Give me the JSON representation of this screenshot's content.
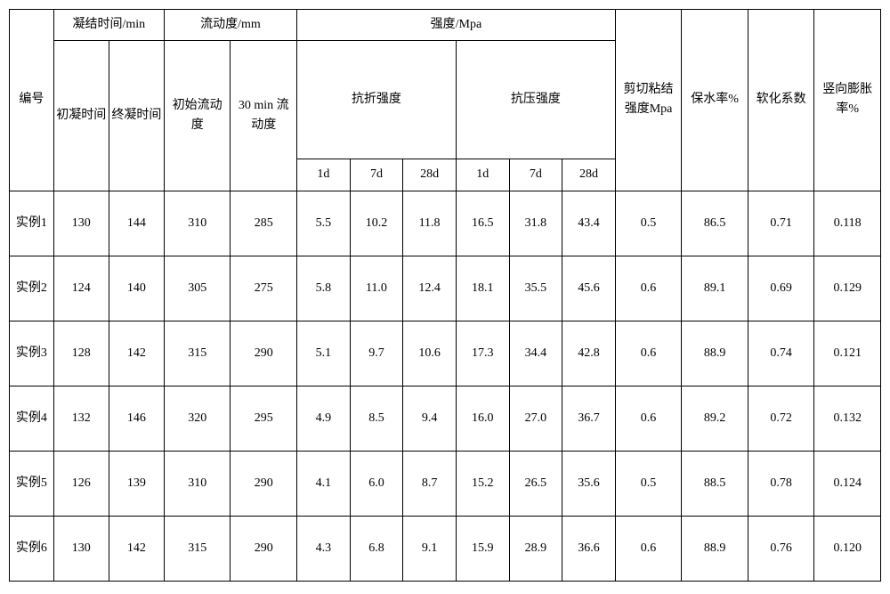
{
  "table": {
    "top_headers": {
      "id": "编号",
      "setting_time": "凝结时间/min",
      "fluidity": "流动度/mm",
      "strength": "强度/Mpa",
      "shear": "剪切粘结强度Mpa",
      "water_retention": "保水率%",
      "softening": "软化系数",
      "vertical_expansion": "竖向膨胀率%"
    },
    "mid_headers": {
      "flexural": "抗折强度",
      "compressive": "抗压强度"
    },
    "sub_headers": {
      "initial_set": "初凝时间",
      "final_set": "终凝时间",
      "initial_flow": "初始流动度",
      "flow_30min": "30 min 流动度",
      "d1": "1d",
      "d7": "7d",
      "d28": "28d"
    },
    "rows": [
      {
        "id": "实例1",
        "init_set": "130",
        "final_set": "144",
        "init_flow": "310",
        "flow30": "285",
        "f1": "5.5",
        "f7": "10.2",
        "f28": "11.8",
        "c1": "16.5",
        "c7": "31.8",
        "c28": "43.4",
        "shear": "0.5",
        "water": "86.5",
        "soft": "0.71",
        "expand": "0.118"
      },
      {
        "id": "实例2",
        "init_set": "124",
        "final_set": "140",
        "init_flow": "305",
        "flow30": "275",
        "f1": "5.8",
        "f7": "11.0",
        "f28": "12.4",
        "c1": "18.1",
        "c7": "35.5",
        "c28": "45.6",
        "shear": "0.6",
        "water": "89.1",
        "soft": "0.69",
        "expand": "0.129"
      },
      {
        "id": "实例3",
        "init_set": "128",
        "final_set": "142",
        "init_flow": "315",
        "flow30": "290",
        "f1": "5.1",
        "f7": "9.7",
        "f28": "10.6",
        "c1": "17.3",
        "c7": "34.4",
        "c28": "42.8",
        "shear": "0.6",
        "water": "88.9",
        "soft": "0.74",
        "expand": "0.121"
      },
      {
        "id": "实例4",
        "init_set": "132",
        "final_set": "146",
        "init_flow": "320",
        "flow30": "295",
        "f1": "4.9",
        "f7": "8.5",
        "f28": "9.4",
        "c1": "16.0",
        "c7": "27.0",
        "c28": "36.7",
        "shear": "0.6",
        "water": "89.2",
        "soft": "0.72",
        "expand": "0.132"
      },
      {
        "id": "实例5",
        "init_set": "126",
        "final_set": "139",
        "init_flow": "310",
        "flow30": "290",
        "f1": "4.1",
        "f7": "6.0",
        "f28": "8.7",
        "c1": "15.2",
        "c7": "26.5",
        "c28": "35.6",
        "shear": "0.5",
        "water": "88.5",
        "soft": "0.78",
        "expand": "0.124"
      },
      {
        "id": "实例6",
        "init_set": "130",
        "final_set": "142",
        "init_flow": "315",
        "flow30": "290",
        "f1": "4.3",
        "f7": "6.8",
        "f28": "9.1",
        "c1": "15.9",
        "c7": "28.9",
        "c28": "36.6",
        "shear": "0.6",
        "water": "88.9",
        "soft": "0.76",
        "expand": "0.120"
      }
    ]
  },
  "style": {
    "border_color": "#000000",
    "background_color": "#ffffff",
    "font_family": "SimSun, Times New Roman, serif",
    "font_size_pt": 11
  }
}
